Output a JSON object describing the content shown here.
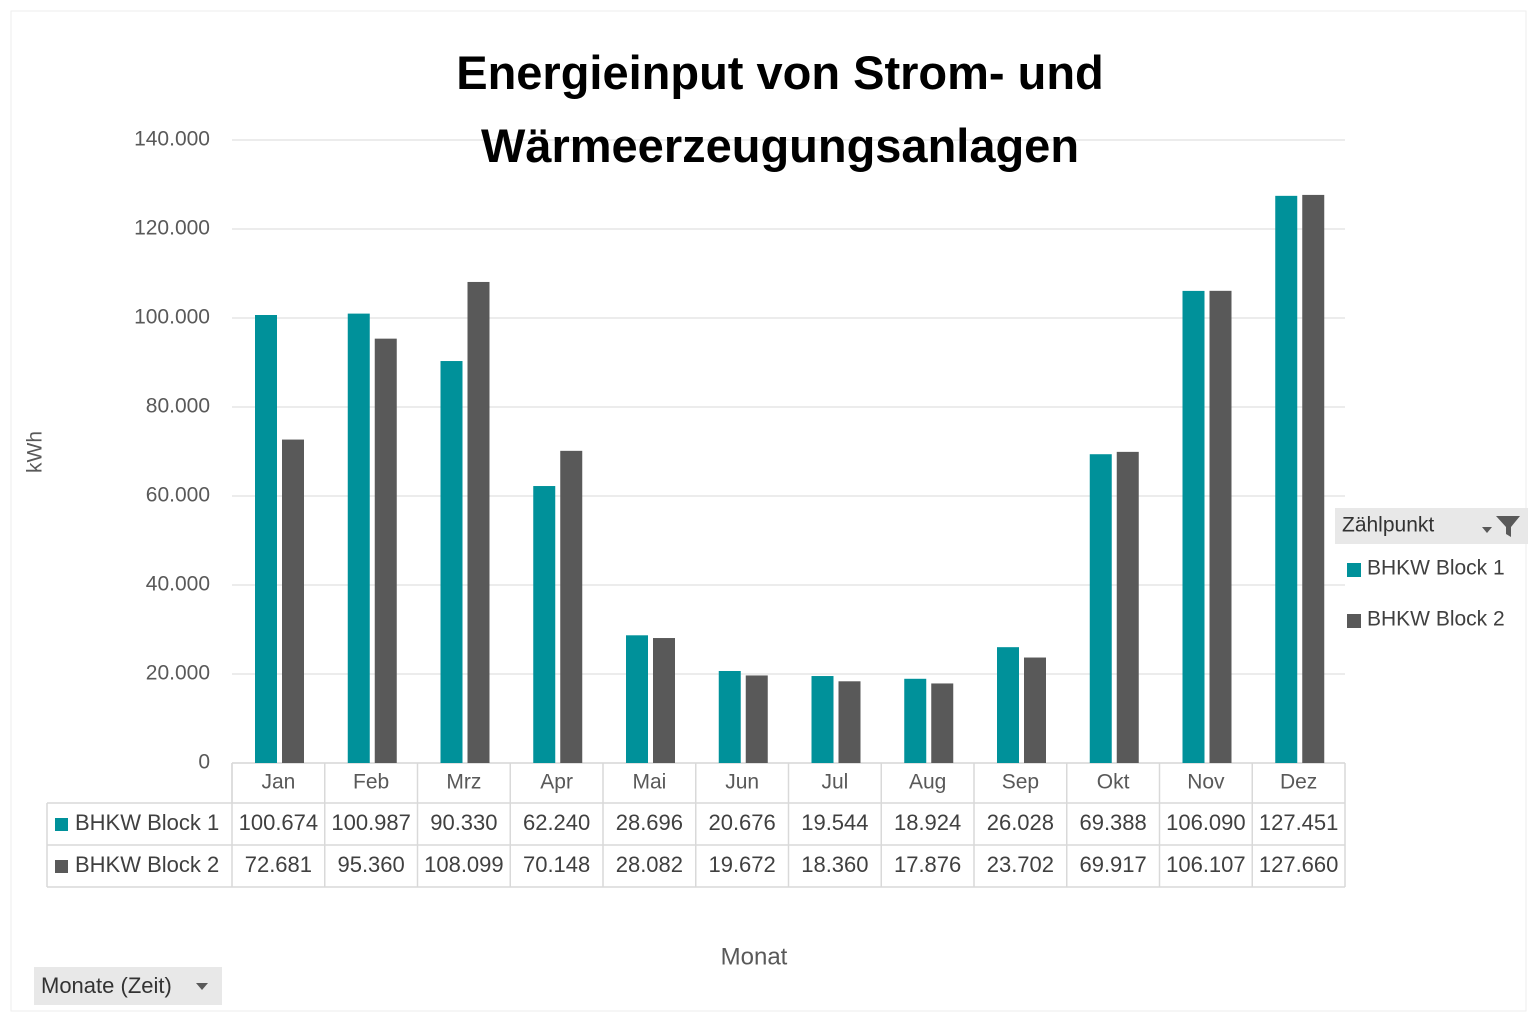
{
  "chart_data": {
    "type": "bar",
    "title": "Energieinput von Strom- und Wärmeerzeugungsanlagen",
    "y_label": "kWh",
    "x_label": "Monat",
    "legend_title": "Zählpunkt",
    "field_button": "Monate (Zeit)",
    "categories": [
      "Jan",
      "Feb",
      "Mrz",
      "Apr",
      "Mai",
      "Jun",
      "Jul",
      "Aug",
      "Sep",
      "Okt",
      "Nov",
      "Dez"
    ],
    "series": [
      {
        "name": "BHKW Block 1",
        "color": "#00919a",
        "values": [
          100674,
          100987,
          90330,
          62240,
          28696,
          20676,
          19544,
          18924,
          26028,
          69388,
          106090,
          127451
        ],
        "value_labels": [
          "100.674",
          "100.987",
          "90.330",
          "62.240",
          "28.696",
          "20.676",
          "19.544",
          "18.924",
          "26.028",
          "69.388",
          "106.090",
          "127.451"
        ]
      },
      {
        "name": "BHKW Block 2",
        "color": "#595959",
        "values": [
          72681,
          95360,
          108099,
          70148,
          28082,
          19672,
          18360,
          17876,
          23702,
          69917,
          106107,
          127660
        ],
        "value_labels": [
          "72.681",
          "95.360",
          "108.099",
          "70.148",
          "28.082",
          "19.672",
          "18.360",
          "17.876",
          "23.702",
          "69.917",
          "106.107",
          "127.660"
        ]
      }
    ],
    "ylim": [
      0,
      140000
    ],
    "yticks": [
      0,
      {
        "value": 20000,
        "label": "20.000"
      },
      {
        "value": 40000,
        "label": "40.000"
      },
      {
        "value": 60000,
        "label": "60.000"
      },
      {
        "value": 80000,
        "label": "80.000"
      },
      {
        "value": 100000,
        "label": "100.000"
      },
      {
        "value": 120000,
        "label": "120.000"
      },
      {
        "value": 140000,
        "label": "140.000"
      }
    ],
    "grid": true
  }
}
